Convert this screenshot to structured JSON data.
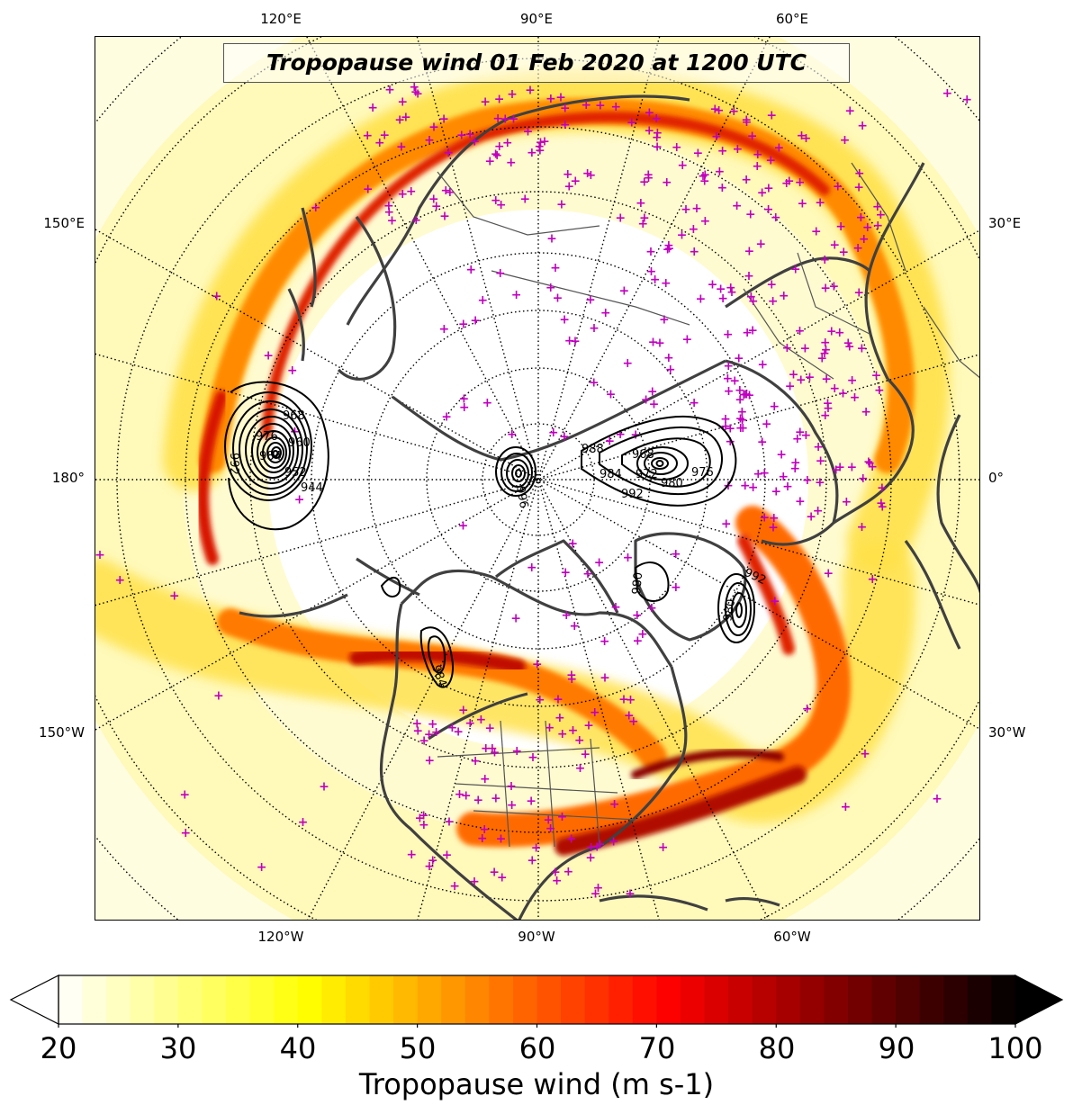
{
  "title": "Tropopause wind 01 Feb 2020 at 1200 UTC",
  "longitude_labels": {
    "top": [
      "120°E",
      "90°E",
      "60°E"
    ],
    "bottom": [
      "120°W",
      "90°W",
      "60°W"
    ],
    "left": [
      "150°E",
      "180°",
      "150°W"
    ],
    "right": [
      "30°E",
      "0°",
      "30°W"
    ]
  },
  "contour_labels": [
    "992",
    "976",
    "984",
    "968",
    "960",
    "952",
    "944",
    "988",
    "968",
    "972",
    "976",
    "984",
    "980",
    "992",
    "996",
    "980",
    "992",
    "984",
    "980"
  ],
  "station_marker": {
    "symbol": "+",
    "color": "#c000c0"
  },
  "colorbar": {
    "label": "Tropopause wind (m s-1)",
    "ticks": [
      "20",
      "30",
      "40",
      "50",
      "60",
      "70",
      "80",
      "90",
      "100"
    ],
    "min": 20,
    "max": 100,
    "colormap": "hot_r",
    "extend": "both"
  },
  "colors": {
    "jet_low": "#ffffd0",
    "jet_mid": "#ffd000",
    "jet_high": "#e02000",
    "jet_max": "#8a0000",
    "coastline": "#404040",
    "contour": "#000000",
    "station": "#c000c0"
  }
}
